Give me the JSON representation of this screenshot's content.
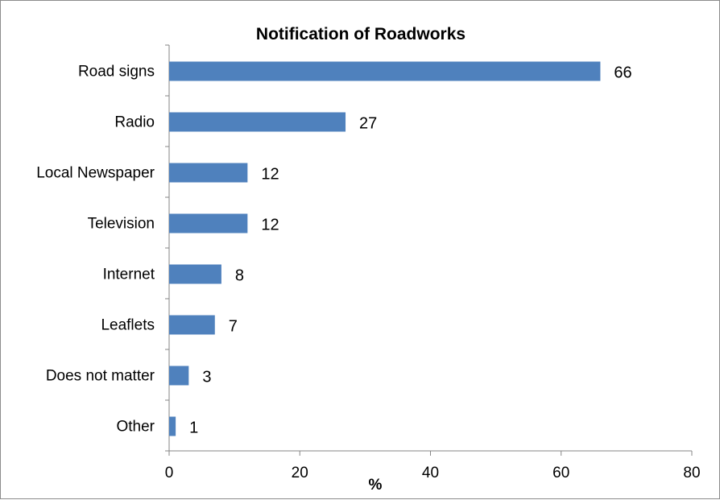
{
  "chart_data": {
    "type": "bar",
    "orientation": "horizontal",
    "title": "Notification of Roadworks",
    "xlabel": "%",
    "ylabel": "",
    "categories": [
      "Road signs",
      "Radio",
      "Local Newspaper",
      "Television",
      "Internet",
      "Leaflets",
      "Does not matter",
      "Other"
    ],
    "values": [
      66,
      27,
      12,
      12,
      8,
      7,
      3,
      1
    ],
    "data_labels": [
      "66",
      "27",
      "12",
      "12",
      "8",
      "7",
      "3",
      "1"
    ],
    "xlim": [
      0,
      80
    ],
    "xticks": [
      0,
      20,
      40,
      60,
      80
    ],
    "xtick_labels": [
      "0",
      "20",
      "40",
      "60",
      "80"
    ],
    "bar_color": "#4f81bd",
    "grid": false,
    "legend": "none"
  }
}
